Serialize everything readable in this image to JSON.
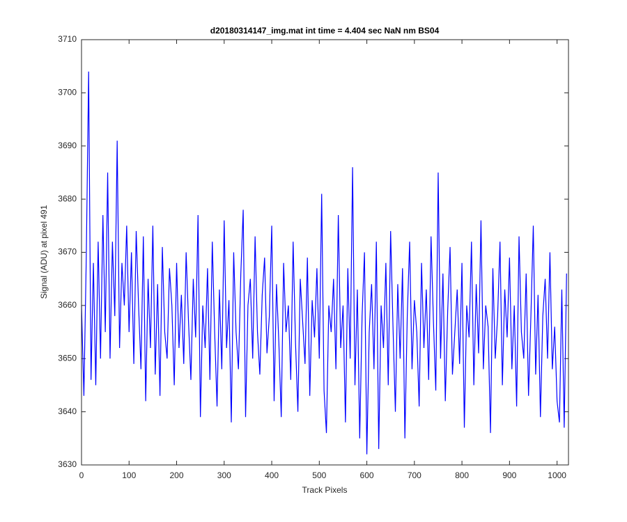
{
  "chart_data": {
    "type": "line",
    "title": "d20180314147_img.mat int time = 4.404 sec  NaN nm BS04",
    "x_label": "Track Pixels",
    "y_label": "Signal (ADU) at pixel 491",
    "xlim": [
      0,
      1024
    ],
    "ylim": [
      3630,
      3710
    ],
    "xticks": [
      0,
      100,
      200,
      300,
      400,
      500,
      600,
      700,
      800,
      900,
      1000
    ],
    "yticks": [
      3630,
      3640,
      3650,
      3660,
      3670,
      3680,
      3690,
      3700,
      3710
    ],
    "grid": false,
    "series": [
      {
        "color": "#0000ff",
        "x": [
          0,
          5,
          10,
          15,
          20,
          25,
          30,
          35,
          40,
          45,
          50,
          55,
          60,
          65,
          70,
          75,
          80,
          85,
          90,
          95,
          100,
          105,
          110,
          115,
          120,
          125,
          130,
          135,
          140,
          145,
          150,
          155,
          160,
          165,
          170,
          175,
          180,
          185,
          190,
          195,
          200,
          205,
          210,
          215,
          220,
          225,
          230,
          235,
          240,
          245,
          250,
          255,
          260,
          265,
          270,
          275,
          280,
          285,
          290,
          295,
          300,
          305,
          310,
          315,
          320,
          325,
          330,
          335,
          340,
          345,
          350,
          355,
          360,
          365,
          370,
          375,
          380,
          385,
          390,
          395,
          400,
          405,
          410,
          415,
          420,
          425,
          430,
          435,
          440,
          445,
          450,
          455,
          460,
          465,
          470,
          475,
          480,
          485,
          490,
          495,
          500,
          505,
          510,
          515,
          520,
          525,
          530,
          535,
          540,
          545,
          550,
          555,
          560,
          565,
          570,
          575,
          580,
          585,
          590,
          595,
          600,
          605,
          610,
          615,
          620,
          625,
          630,
          635,
          640,
          645,
          650,
          655,
          660,
          665,
          670,
          675,
          680,
          685,
          690,
          695,
          700,
          705,
          710,
          715,
          720,
          725,
          730,
          735,
          740,
          745,
          750,
          755,
          760,
          765,
          770,
          775,
          780,
          785,
          790,
          795,
          800,
          805,
          810,
          815,
          820,
          825,
          830,
          835,
          840,
          845,
          850,
          855,
          860,
          865,
          870,
          875,
          880,
          885,
          890,
          895,
          900,
          905,
          910,
          915,
          920,
          925,
          930,
          935,
          940,
          945,
          950,
          955,
          960,
          965,
          970,
          975,
          980,
          985,
          990,
          995,
          1000,
          1005,
          1010,
          1015,
          1020
        ],
        "values": [
          3660,
          3643,
          3669,
          3704,
          3646,
          3668,
          3645,
          3672,
          3650,
          3677,
          3655,
          3685,
          3650,
          3672,
          3658,
          3691,
          3652,
          3668,
          3660,
          3675,
          3655,
          3670,
          3649,
          3674,
          3660,
          3648,
          3673,
          3642,
          3665,
          3652,
          3675,
          3647,
          3664,
          3643,
          3671,
          3655,
          3650,
          3667,
          3660,
          3645,
          3668,
          3652,
          3662,
          3649,
          3670,
          3657,
          3646,
          3665,
          3654,
          3677,
          3639,
          3660,
          3652,
          3667,
          3646,
          3672,
          3655,
          3641,
          3663,
          3648,
          3676,
          3652,
          3661,
          3638,
          3670,
          3655,
          3648,
          3666,
          3678,
          3639,
          3660,
          3665,
          3650,
          3673,
          3655,
          3647,
          3662,
          3669,
          3651,
          3658,
          3675,
          3642,
          3664,
          3653,
          3639,
          3668,
          3655,
          3660,
          3646,
          3672,
          3653,
          3640,
          3665,
          3657,
          3649,
          3669,
          3643,
          3661,
          3654,
          3667,
          3650,
          3681,
          3644,
          3636,
          3660,
          3655,
          3665,
          3648,
          3677,
          3652,
          3660,
          3638,
          3667,
          3650,
          3686,
          3645,
          3663,
          3635,
          3658,
          3670,
          3632,
          3655,
          3664,
          3648,
          3672,
          3633,
          3660,
          3652,
          3668,
          3645,
          3674,
          3656,
          3640,
          3664,
          3650,
          3667,
          3635,
          3658,
          3672,
          3648,
          3661,
          3655,
          3641,
          3668,
          3652,
          3663,
          3646,
          3673,
          3657,
          3644,
          3685,
          3650,
          3666,
          3642,
          3659,
          3671,
          3647,
          3655,
          3663,
          3649,
          3668,
          3637,
          3660,
          3654,
          3672,
          3645,
          3664,
          3651,
          3676,
          3648,
          3660,
          3656,
          3636,
          3667,
          3650,
          3658,
          3672,
          3645,
          3663,
          3654,
          3669,
          3648,
          3660,
          3641,
          3673,
          3655,
          3650,
          3666,
          3643,
          3658,
          3675,
          3647,
          3662,
          3639,
          3658,
          3665,
          3650,
          3670,
          3648,
          3656,
          3642,
          3638,
          3663,
          3637,
          3666
        ]
      }
    ]
  }
}
